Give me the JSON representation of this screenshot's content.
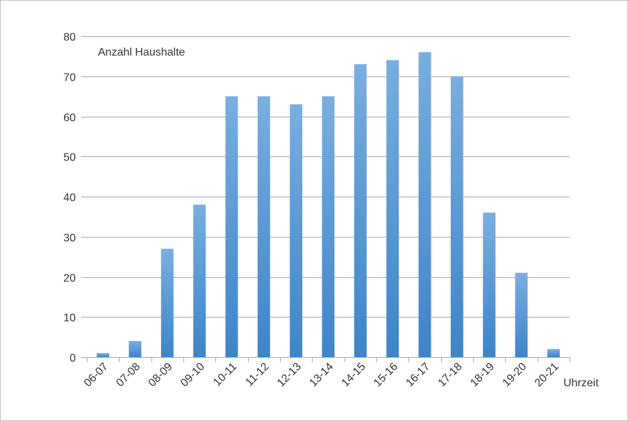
{
  "chart_data": {
    "type": "bar",
    "title": "",
    "ylabel": "Anzahl Haushalte",
    "xlabel": "Uhrzeit",
    "categories": [
      "06-07",
      "07-08",
      "08-09",
      "09-10",
      "10-11",
      "11-12",
      "12-13",
      "13-14",
      "14-15",
      "15-16",
      "16-17",
      "17-18",
      "18-19",
      "19-20",
      "20-21"
    ],
    "values": [
      1,
      4,
      27,
      38,
      65,
      65,
      63,
      65,
      73,
      74,
      76,
      70,
      36,
      21,
      2
    ],
    "ylim": [
      0,
      80
    ],
    "yticks": [
      0,
      10,
      20,
      30,
      40,
      50,
      60,
      70,
      80
    ],
    "grid": true,
    "legend": "none",
    "colors": {
      "bar_top": "#7aaee0",
      "bar_bottom": "#3d85c8",
      "grid": "#a6a6a6",
      "axis": "#a6a6a6",
      "text": "#333333"
    }
  }
}
